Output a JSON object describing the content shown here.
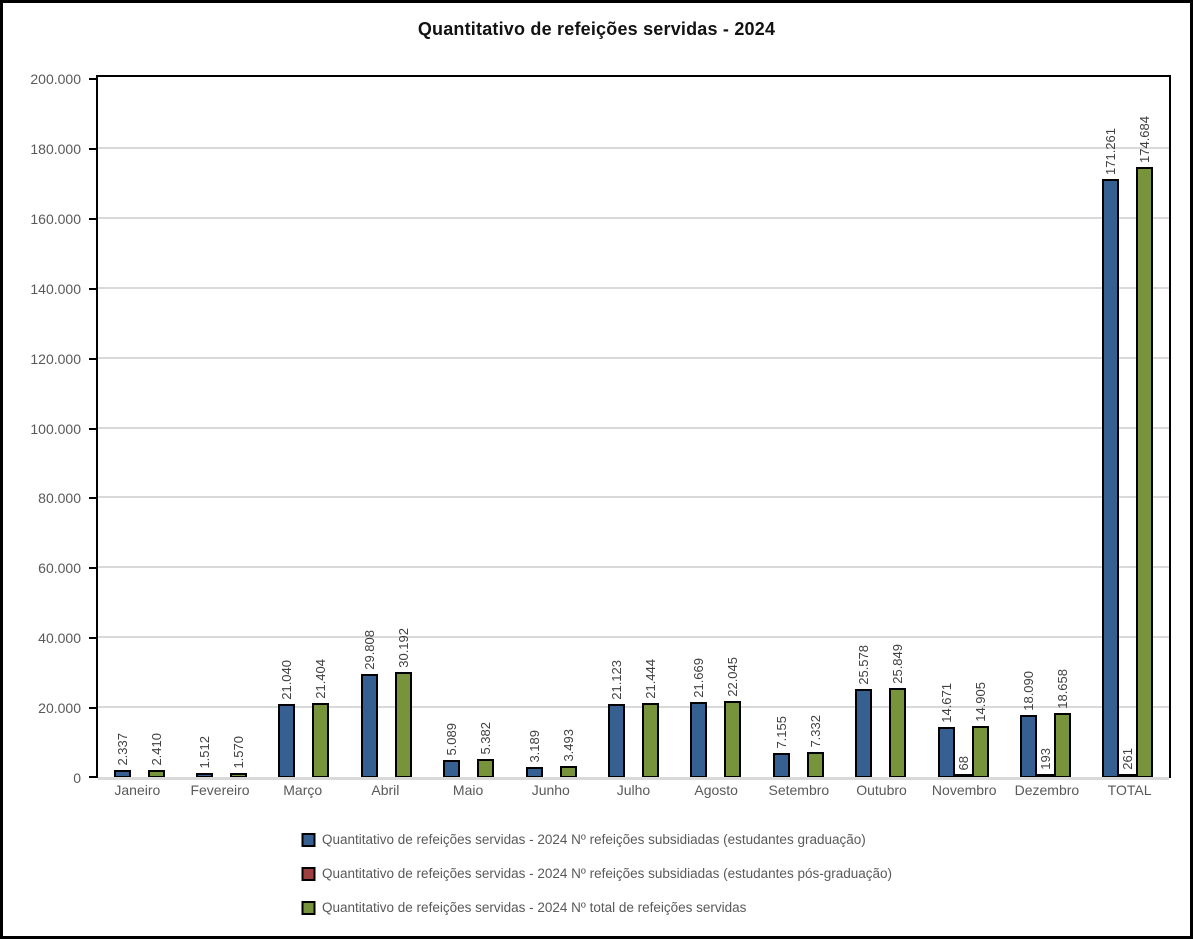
{
  "title": "Quantitativo de refeições servidas - 2024",
  "colors": {
    "series_graduacao": "#376092",
    "series_pos_graduacao": "#9E413E",
    "series_total": "#77933C",
    "gridline": "#D9D9D9",
    "axis_text": "#595959",
    "data_label_text": "#404040",
    "plot_border": "#000000"
  },
  "chart_data": {
    "type": "bar",
    "title": "Quantitativo de refeições servidas - 2024",
    "categories": [
      "Janeiro",
      "Fevereiro",
      "Março",
      "Abril",
      "Maio",
      "Junho",
      "Julho",
      "Agosto",
      "Setembro",
      "Outubro",
      "Novembro",
      "Dezembro",
      "TOTAL"
    ],
    "series": [
      {
        "name": "Quantitativo de refeições servidas - 2024 Nº refeições subsidiadas (estudantes graduação)",
        "color": "#376092",
        "values": [
          2337,
          1512,
          21040,
          29808,
          5089,
          3189,
          21123,
          21669,
          7155,
          25578,
          14671,
          18090,
          171261
        ]
      },
      {
        "name": "Quantitativo de refeições servidas - 2024 Nº refeições subsidiadas (estudantes pós-graduação)",
        "color": "#9E413E",
        "values": [
          null,
          null,
          null,
          null,
          null,
          null,
          null,
          null,
          null,
          null,
          68,
          193,
          261
        ]
      },
      {
        "name": "Quantitativo de refeições servidas - 2024 Nº total de refeições servidas",
        "color": "#77933C",
        "values": [
          2410,
          1570,
          21404,
          30192,
          5382,
          3493,
          21444,
          22045,
          7332,
          25849,
          14905,
          18658,
          174684
        ]
      }
    ],
    "ylim": [
      0,
      200000
    ],
    "ytick_step": 20000,
    "ytick_labels": [
      "0",
      "20.000",
      "40.000",
      "60.000",
      "80.000",
      "100.000",
      "120.000",
      "140.000",
      "160.000",
      "180.000",
      "200.000"
    ],
    "grid": true,
    "legend_position": "bottom",
    "data_labels": "rotated-90",
    "number_format": "thousands-dot"
  }
}
